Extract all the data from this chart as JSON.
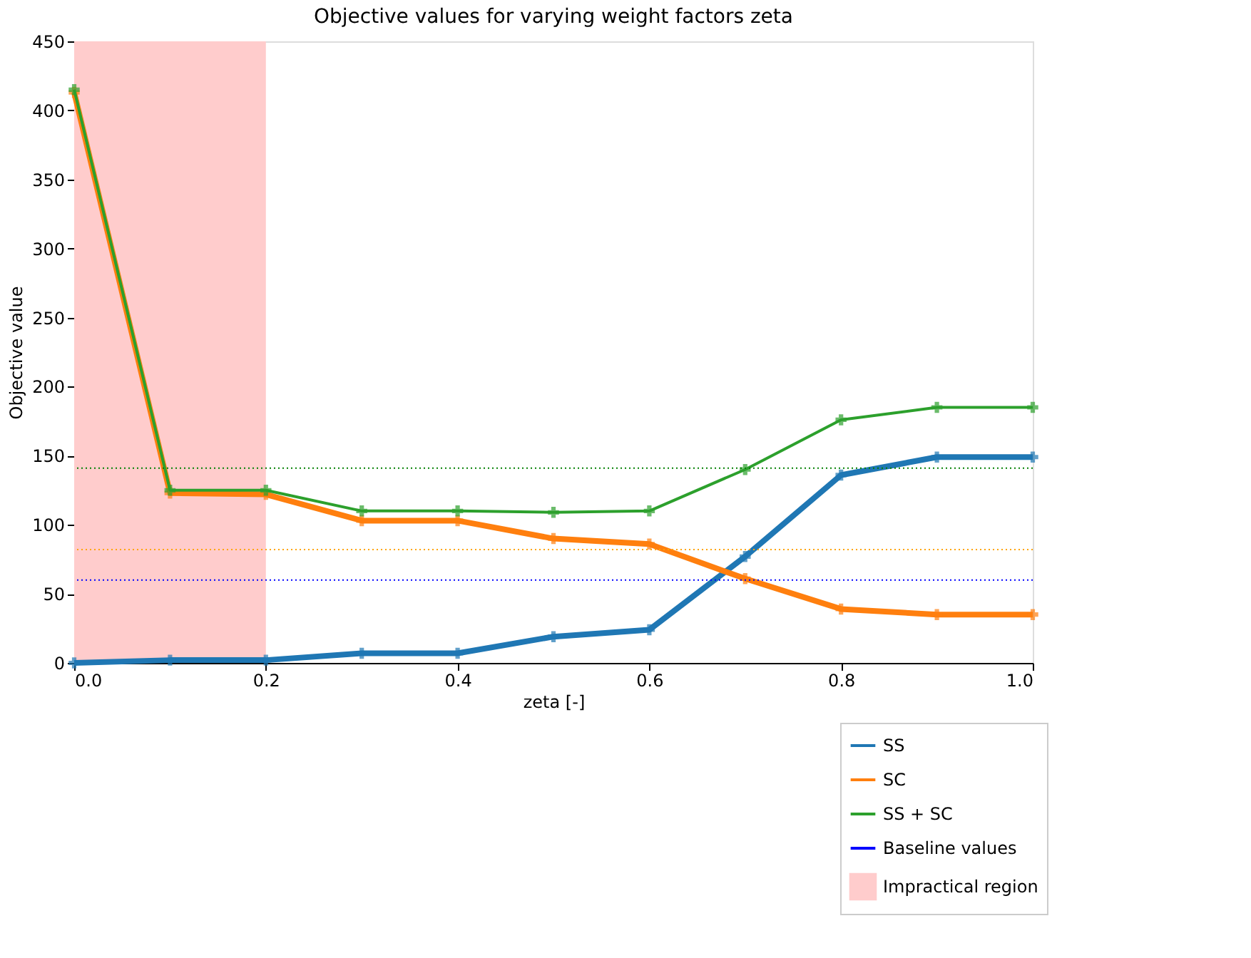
{
  "chart_data": {
    "type": "line",
    "title": "Objective values for varying weight factors zeta",
    "xlabel": "zeta [-]",
    "ylabel": "Objective value",
    "x": [
      0.0,
      0.1,
      0.2,
      0.3,
      0.4,
      0.5,
      0.6,
      0.7,
      0.8,
      0.9,
      1.0
    ],
    "series": [
      {
        "name": "SS",
        "color": "#1f77b4",
        "values": [
          0,
          2,
          2,
          7,
          7,
          19,
          24,
          77,
          136,
          149,
          149
        ]
      },
      {
        "name": "SC",
        "color": "#ff7f0e",
        "values": [
          413,
          123,
          122,
          103,
          103,
          90,
          86,
          61,
          39,
          35,
          35
        ]
      },
      {
        "name": "SS + SC",
        "color": "#2ca02c",
        "values": [
          415,
          125,
          125,
          110,
          110,
          109,
          110,
          140,
          176,
          185,
          185
        ]
      }
    ],
    "ref_lines": [
      {
        "axis": "y",
        "value": 60,
        "label": "Baseline values",
        "color": "#0000ff",
        "line_style": "dotted"
      },
      {
        "axis": "y",
        "value": 82,
        "color": "#ffa500",
        "line_style": "dotted"
      },
      {
        "axis": "y",
        "value": 141,
        "color": "#008000",
        "line_style": "dotted"
      }
    ],
    "bands": [
      {
        "axis": "x",
        "from": 0.0,
        "to": 0.2,
        "label": "Impractical region",
        "color": "#ffcccc"
      }
    ],
    "xlim": [
      0.0,
      1.0
    ],
    "xticks": [
      {
        "value": 0,
        "label": "0.0"
      },
      0.2,
      0.4,
      0.6,
      0.8,
      {
        "value": 1,
        "label": "1.0"
      }
    ],
    "ylim": [
      0,
      450
    ],
    "yticks": [
      0,
      50,
      100,
      150,
      200,
      250,
      300,
      350,
      400,
      450
    ],
    "marker": "cross",
    "line_style": "solid",
    "grid": false,
    "legend": "bottom right"
  }
}
